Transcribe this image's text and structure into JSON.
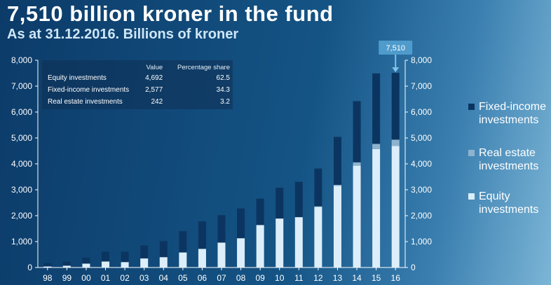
{
  "header": {
    "title": "7,510 billion kroner in the fund",
    "subtitle": "As at 31.12.2016. Billions of kroner"
  },
  "table": {
    "headers": [
      "",
      "Value",
      "Percentage share"
    ],
    "rows": [
      {
        "label": "Equity investments",
        "value": "4,692",
        "share": "62.5"
      },
      {
        "label": "Fixed-income investments",
        "value": "2,577",
        "share": "34.3"
      },
      {
        "label": "Real estate investments",
        "value": "242",
        "share": "3.2"
      }
    ]
  },
  "legend": [
    {
      "label": "Fixed-income investments",
      "color": "#0b3560"
    },
    {
      "label": "Real estate investments",
      "color": "#8db3cf"
    },
    {
      "label": "Equity investments",
      "color": "#dceefa"
    }
  ],
  "callout": {
    "label": "7,510"
  },
  "chart_data": {
    "type": "bar",
    "stacked": true,
    "categories": [
      "98",
      "99",
      "00",
      "01",
      "02",
      "03",
      "04",
      "05",
      "06",
      "07",
      "08",
      "09",
      "10",
      "11",
      "12",
      "13",
      "14",
      "15",
      "16"
    ],
    "series": [
      {
        "name": "Equity investments",
        "color": "#dceefa",
        "values": [
          40,
          70,
          150,
          230,
          210,
          350,
          400,
          580,
          720,
          960,
          1130,
          1640,
          1890,
          1940,
          2340,
          3150,
          3930,
          4570,
          4692
        ]
      },
      {
        "name": "Real estate investments",
        "color": "#8db3cf",
        "values": [
          0,
          0,
          0,
          0,
          0,
          0,
          0,
          0,
          0,
          0,
          0,
          0,
          0,
          8,
          20,
          40,
          130,
          200,
          242
        ]
      },
      {
        "name": "Fixed-income investments",
        "color": "#0b3560",
        "values": [
          130,
          150,
          230,
          380,
          400,
          500,
          620,
          820,
          1060,
          1060,
          1150,
          1020,
          1190,
          1360,
          1460,
          1850,
          2360,
          2720,
          2577
        ]
      }
    ],
    "ylim": [
      0,
      8000
    ],
    "yticks": [
      "0",
      "1,000",
      "2,000",
      "3,000",
      "4,000",
      "5,000",
      "6,000",
      "7,000",
      "8,000"
    ],
    "grid": false,
    "legend_position": "right"
  }
}
